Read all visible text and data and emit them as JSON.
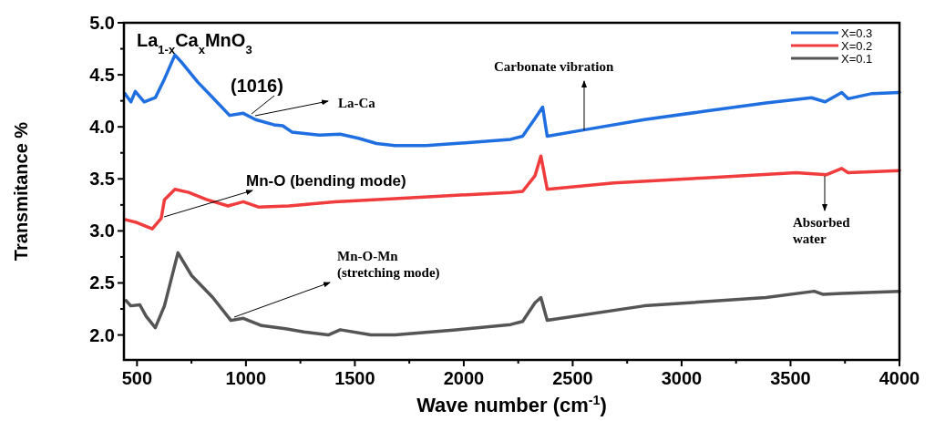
{
  "chart_data": {
    "type": "line",
    "xlabel": "Wave number (cm$^{-1}$)",
    "ylabel": "Transmitance %",
    "annotations": [
      "La$_{1-x}$Ca$_{x}$MnO$_{3}$",
      "(1016)",
      "La-Ca",
      "Carbonate vibration",
      "Mn-O (bending mode)",
      "Absorbed\nwater",
      "Mn-O-Mn\n(stretching mode)"
    ],
    "xlim": [
      440,
      4000
    ],
    "ylim": [
      1.76,
      5.0
    ],
    "xticks": [
      500,
      {
        "value": 750,
        "label": null
      },
      1000,
      {
        "value": 1250,
        "label": null
      },
      1500,
      {
        "value": 1750,
        "label": null
      },
      2000,
      {
        "value": 2250,
        "label": null
      },
      2500,
      {
        "value": 2750,
        "label": null
      },
      3000,
      {
        "value": 3250,
        "label": null
      },
      3500,
      {
        "value": 3750,
        "label": null
      },
      4000
    ],
    "yticks": [
      {
        "value": 2,
        "label": "2.0"
      },
      {
        "value": 2.25,
        "label": null
      },
      {
        "value": 2.5,
        "label": "2.5"
      },
      {
        "value": 2.75,
        "label": null
      },
      {
        "value": 3,
        "label": "3.0"
      },
      {
        "value": 3.25,
        "label": null
      },
      {
        "value": 3.5,
        "label": "3.5"
      },
      {
        "value": 3.75,
        "label": null
      },
      {
        "value": 4,
        "label": "4.0"
      },
      {
        "value": 4.25,
        "label": null
      },
      {
        "value": 4.5,
        "label": "4.5"
      },
      {
        "value": 4.75,
        "label": null
      },
      {
        "value": 5,
        "label": "5.0"
      }
    ],
    "legend": "top right",
    "grid": false,
    "marker": "none",
    "line_style": "solid",
    "series": [
      {
        "name": "X=0.3",
        "color": "#1f6fe0",
        "x": [
          444,
          472,
          492,
          533,
          584,
          626,
          674,
          709,
          779,
          848,
          925,
          988,
          1044,
          1128,
          1169,
          1211,
          1337,
          1433,
          1517,
          1600,
          1684,
          1826,
          2035,
          2215,
          2270,
          2327,
          2362,
          2383,
          2550,
          2829,
          3107,
          3387,
          3596,
          3659,
          3735,
          3764,
          3875,
          4000
        ],
        "values": [
          4.32,
          4.24,
          4.34,
          4.24,
          4.28,
          4.46,
          4.69,
          4.61,
          4.43,
          4.28,
          4.11,
          4.13,
          4.07,
          4.02,
          4.01,
          3.95,
          3.92,
          3.93,
          3.89,
          3.84,
          3.82,
          3.82,
          3.85,
          3.88,
          3.91,
          4.08,
          4.19,
          3.91,
          3.97,
          4.07,
          4.15,
          4.23,
          4.28,
          4.24,
          4.33,
          4.27,
          4.32,
          4.33
        ]
      },
      {
        "name": "X=0.2",
        "color": "#f03c3c",
        "x": [
          444,
          500,
          570,
          611,
          626,
          674,
          737,
          821,
          918,
          988,
          1057,
          1197,
          1407,
          1684,
          2215,
          2270,
          2327,
          2354,
          2383,
          2689,
          3107,
          3525,
          3666,
          3735,
          3764,
          4000
        ],
        "values": [
          3.11,
          3.08,
          3.02,
          3.12,
          3.3,
          3.4,
          3.37,
          3.3,
          3.24,
          3.28,
          3.23,
          3.24,
          3.28,
          3.31,
          3.37,
          3.38,
          3.53,
          3.72,
          3.4,
          3.46,
          3.51,
          3.56,
          3.54,
          3.6,
          3.56,
          3.58
        ]
      },
      {
        "name": "X=0.1",
        "color": "#555555",
        "x": [
          450,
          471,
          513,
          542,
          584,
          626,
          688,
          751,
          848,
          931,
          988,
          1072,
          1182,
          1266,
          1378,
          1433,
          1574,
          1684,
          1964,
          2215,
          2270,
          2327,
          2354,
          2383,
          2829,
          3387,
          3609,
          3650,
          3735,
          4000
        ],
        "values": [
          2.33,
          2.28,
          2.29,
          2.18,
          2.07,
          2.28,
          2.79,
          2.57,
          2.36,
          2.14,
          2.16,
          2.09,
          2.06,
          2.03,
          2.0,
          2.05,
          2.0,
          2.0,
          2.05,
          2.1,
          2.13,
          2.31,
          2.36,
          2.14,
          2.28,
          2.36,
          2.42,
          2.39,
          2.4,
          2.42
        ]
      }
    ]
  }
}
